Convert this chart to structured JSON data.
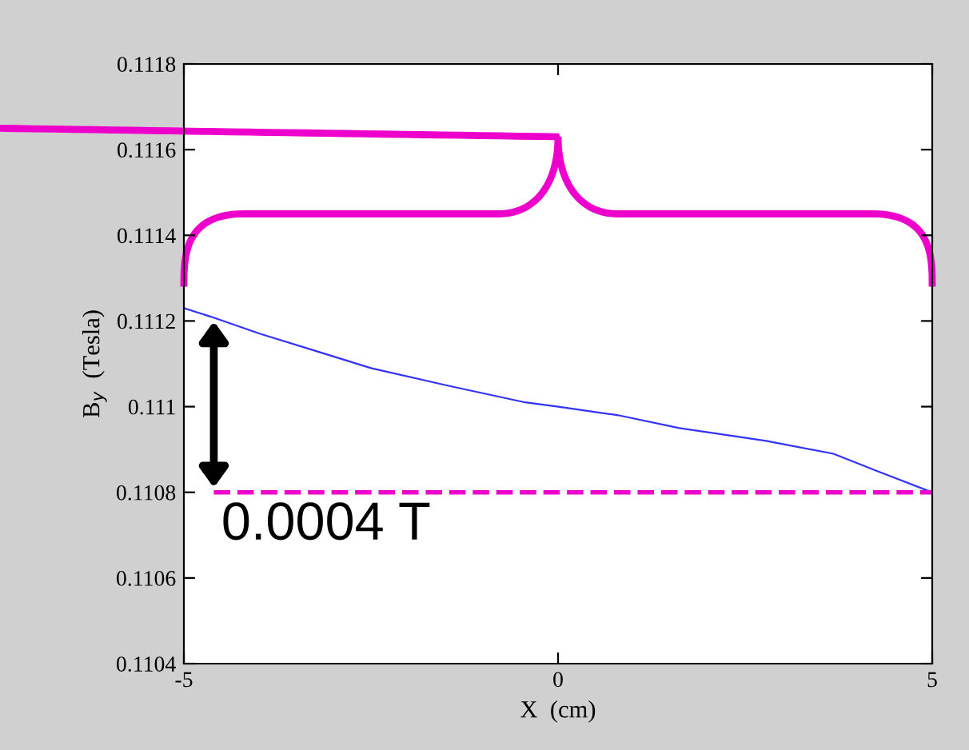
{
  "chart_data": {
    "type": "line",
    "xlabel": "X  (cm)",
    "ylabel": "B$_{y}$  (Tesla)",
    "x": [
      -5,
      -4.64,
      -3.98,
      -3.24,
      -2.5,
      -1.5,
      -0.44,
      0,
      0.8,
      1.62,
      2.78,
      3.68,
      4.26,
      5
    ],
    "series": [
      {
        "color": "#3333ff",
        "values": [
          0.11123,
          0.11121,
          0.11117,
          0.11113,
          0.11109,
          0.11105,
          0.11101,
          0.111,
          0.11098,
          0.11095,
          0.11092,
          0.11089,
          0.11085,
          0.1108
        ]
      }
    ],
    "xlim": [
      -5,
      5
    ],
    "xticks": [
      -5,
      0,
      5
    ],
    "ylim": [
      0.1104,
      0.1118
    ],
    "yticks": [
      0.1104,
      0.1106,
      0.1108,
      0.111,
      0.1112,
      0.1114,
      0.1116,
      0.1118
    ],
    "ref_lines": [
      {
        "axis": "y",
        "value": 0.1108,
        "color": "#ee00cc",
        "line_style": "dashed"
      }
    ],
    "annotations": [
      "0.0004 T"
    ],
    "grid": false,
    "legend": false,
    "marker": "none",
    "line_style": "solid"
  }
}
